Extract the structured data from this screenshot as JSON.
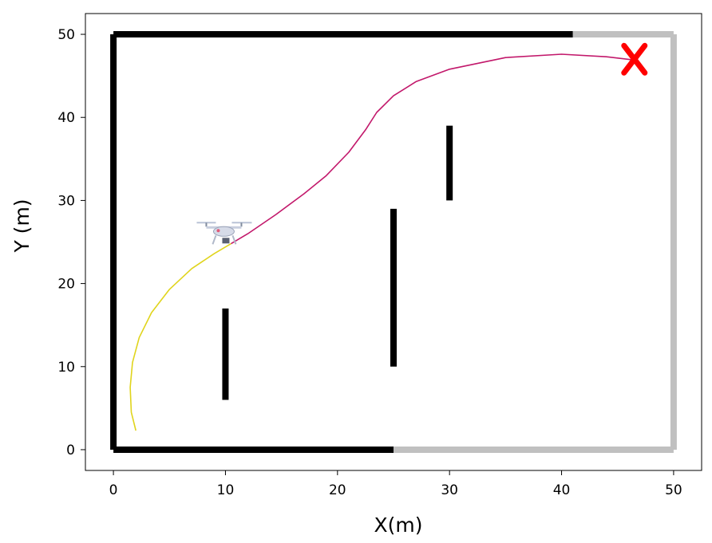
{
  "chart_data": {
    "type": "scatter",
    "title": "",
    "xlabel": "X(m)",
    "ylabel": "Y (m)",
    "xlim": [
      -2.5,
      52.5
    ],
    "ylim": [
      -2.5,
      52.5
    ],
    "xticks": [
      0,
      10,
      20,
      30,
      40,
      50
    ],
    "yticks": [
      0,
      10,
      20,
      30,
      40,
      50
    ],
    "grid": false,
    "colors": {
      "observed_wall": "#000000",
      "unobserved_wall": "#c0c0c0",
      "future_path": "#c2186b",
      "past_path": "#e0d41c",
      "goal": "#ff0000"
    },
    "walls_observed": [
      {
        "name": "left-wall",
        "x": [
          0,
          0
        ],
        "y": [
          0,
          50
        ]
      },
      {
        "name": "top-wall-observed",
        "x": [
          0,
          41
        ],
        "y": [
          50,
          50
        ]
      },
      {
        "name": "bottom-wall-observed",
        "x": [
          0,
          25
        ],
        "y": [
          0,
          0
        ]
      },
      {
        "name": "obstacle-1",
        "x": [
          10,
          10
        ],
        "y": [
          6,
          17
        ]
      },
      {
        "name": "obstacle-2",
        "x": [
          25,
          25
        ],
        "y": [
          10,
          29
        ]
      },
      {
        "name": "obstacle-3",
        "x": [
          30,
          30
        ],
        "y": [
          30,
          39
        ]
      }
    ],
    "walls_unobserved": [
      {
        "name": "top-wall-unobserved",
        "x": [
          41,
          50
        ],
        "y": [
          50,
          50
        ]
      },
      {
        "name": "right-wall",
        "x": [
          50,
          50
        ],
        "y": [
          0,
          50
        ]
      },
      {
        "name": "bottom-wall-unobserved",
        "x": [
          25,
          50
        ],
        "y": [
          0,
          0
        ]
      }
    ],
    "series": [
      {
        "name": "traversed path",
        "color": "#e0d41c",
        "x": [
          2.0,
          1.6,
          1.5,
          1.7,
          2.3,
          3.4,
          5.0,
          7.0,
          9.0,
          10.5
        ],
        "y": [
          2.3,
          4.5,
          7.5,
          10.5,
          13.5,
          16.5,
          19.3,
          21.8,
          23.6,
          24.8
        ]
      },
      {
        "name": "planned path",
        "color": "#c2186b",
        "x": [
          10.5,
          12.0,
          14.5,
          17.0,
          19.0,
          21.0,
          22.5,
          23.5,
          25.0,
          27.0,
          30.0,
          35.0,
          40.0,
          44.0,
          46.5
        ],
        "y": [
          24.8,
          26.0,
          28.3,
          30.8,
          33.0,
          35.8,
          38.5,
          40.6,
          42.6,
          44.3,
          45.8,
          47.2,
          47.6,
          47.3,
          46.9
        ]
      }
    ],
    "drone_position": {
      "x": 10,
      "y": 25.5
    },
    "goal": {
      "x": 46.5,
      "y": 47
    }
  }
}
